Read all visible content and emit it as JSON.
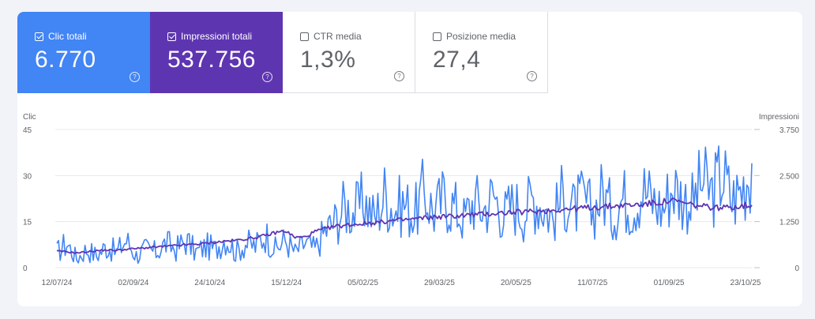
{
  "metrics": [
    {
      "label": "Clic totali",
      "value": "6.770",
      "checked": true,
      "color": "#4285f4"
    },
    {
      "label": "Impressioni totali",
      "value": "537.756",
      "checked": true,
      "color": "#5e35b1"
    },
    {
      "label": "CTR media",
      "value": "1,3%",
      "checked": false
    },
    {
      "label": "Posizione media",
      "value": "27,4",
      "checked": false
    }
  ],
  "help_glyph": "?",
  "chart_data": {
    "type": "line",
    "ylabel_left": "Clic",
    "ylabel_right": "Impressioni",
    "left_ticks": [
      "45",
      "30",
      "15",
      "0"
    ],
    "right_ticks": [
      "3.750",
      "2.500",
      "1.250",
      "0"
    ],
    "ylim_left": [
      0,
      45
    ],
    "ylim_right": [
      0,
      3750
    ],
    "x_tick_labels": [
      "12/07/24",
      "02/09/24",
      "24/10/24",
      "15/12/24",
      "05/02/25",
      "29/03/25",
      "20/05/25",
      "11/07/25",
      "01/09/25",
      "23/10/25"
    ],
    "grid": true,
    "series": [
      {
        "name": "Clic totali",
        "axis": "left",
        "color": "#4285f4",
        "x": [
          "12/07/24",
          "19/07/24",
          "26/07/24",
          "02/08/24",
          "09/08/24",
          "16/08/24",
          "23/08/24",
          "30/08/24",
          "06/09/24",
          "13/09/24",
          "20/09/24",
          "27/09/24",
          "04/10/24",
          "11/10/24",
          "18/10/24",
          "25/10/24",
          "01/11/24",
          "08/11/24",
          "15/11/24",
          "22/11/24",
          "29/11/24",
          "06/12/24",
          "13/12/24",
          "20/12/24",
          "27/12/24",
          "03/01/25",
          "10/01/25",
          "17/01/25",
          "24/01/25",
          "31/01/25",
          "07/02/25",
          "14/02/25",
          "21/02/25",
          "28/02/25",
          "07/03/25",
          "14/03/25",
          "21/03/25",
          "28/03/25",
          "04/04/25",
          "11/04/25",
          "18/04/25",
          "25/04/25",
          "02/05/25",
          "09/05/25",
          "16/05/25",
          "23/05/25",
          "30/05/25",
          "06/06/25",
          "13/06/25",
          "20/06/25",
          "27/06/25",
          "04/07/25",
          "11/07/25",
          "18/07/25",
          "25/07/25",
          "01/08/25",
          "08/08/25",
          "15/08/25",
          "22/08/25",
          "29/08/25",
          "05/09/25",
          "12/09/25",
          "19/09/25",
          "26/09/25",
          "03/10/25",
          "10/10/25",
          "17/10/25",
          "24/10/25",
          "31/10/25",
          "07/11/25",
          "12/11/25"
        ],
        "values": [
          5,
          8,
          3,
          6,
          4,
          7,
          5,
          9,
          4,
          6,
          5,
          8,
          6,
          9,
          5,
          7,
          6,
          10,
          5,
          8,
          7,
          11,
          6,
          9,
          5,
          8,
          6,
          12,
          15,
          20,
          18,
          22,
          16,
          24,
          19,
          21,
          17,
          25,
          18,
          23,
          20,
          16,
          22,
          19,
          24,
          17,
          21,
          18,
          23,
          20,
          16,
          24,
          19,
          22,
          18,
          25,
          17,
          23,
          20,
          26,
          22,
          19,
          27,
          23,
          21,
          28,
          24,
          31,
          22,
          26,
          34
        ]
      },
      {
        "name": "Impressioni totali",
        "axis": "right",
        "color": "#5e35b1",
        "x": [
          "12/07/24",
          "19/07/24",
          "26/07/24",
          "02/08/24",
          "09/08/24",
          "16/08/24",
          "23/08/24",
          "30/08/24",
          "06/09/24",
          "13/09/24",
          "20/09/24",
          "27/09/24",
          "04/10/24",
          "11/10/24",
          "18/10/24",
          "25/10/24",
          "01/11/24",
          "08/11/24",
          "15/11/24",
          "22/11/24",
          "29/11/24",
          "06/12/24",
          "13/12/24",
          "20/12/24",
          "27/12/24",
          "03/01/25",
          "10/01/25",
          "17/01/25",
          "24/01/25",
          "31/01/25",
          "07/02/25",
          "14/02/25",
          "21/02/25",
          "28/02/25",
          "07/03/25",
          "14/03/25",
          "21/03/25",
          "28/03/25",
          "04/04/25",
          "11/04/25",
          "18/04/25",
          "25/04/25",
          "02/05/25",
          "09/05/25",
          "16/05/25",
          "23/05/25",
          "30/05/25",
          "06/06/25",
          "13/06/25",
          "20/06/25",
          "27/06/25",
          "04/07/25",
          "11/07/25",
          "18/07/25",
          "25/07/25",
          "01/08/25",
          "08/08/25",
          "15/08/25",
          "22/08/25",
          "29/08/25",
          "05/09/25",
          "12/09/25",
          "19/09/25",
          "26/09/25",
          "03/10/25",
          "10/10/25",
          "17/10/25",
          "24/10/25",
          "31/10/25",
          "07/11/25",
          "12/11/25"
        ],
        "values": [
          450,
          430,
          400,
          430,
          460,
          480,
          470,
          500,
          520,
          540,
          560,
          580,
          600,
          620,
          640,
          660,
          690,
          720,
          740,
          780,
          820,
          870,
          950,
          1000,
          820,
          830,
          980,
          1050,
          1120,
          1150,
          1180,
          1200,
          1220,
          1250,
          1280,
          1300,
          1320,
          1350,
          1370,
          1390,
          1400,
          1420,
          1440,
          1450,
          1470,
          1490,
          1500,
          1510,
          1530,
          1540,
          1560,
          1580,
          1600,
          1620,
          1640,
          1650,
          1670,
          1690,
          1700,
          1720,
          1750,
          1780,
          1820,
          1760,
          1700,
          1660,
          1640,
          1620,
          1650,
          1680,
          1700
        ]
      }
    ]
  }
}
